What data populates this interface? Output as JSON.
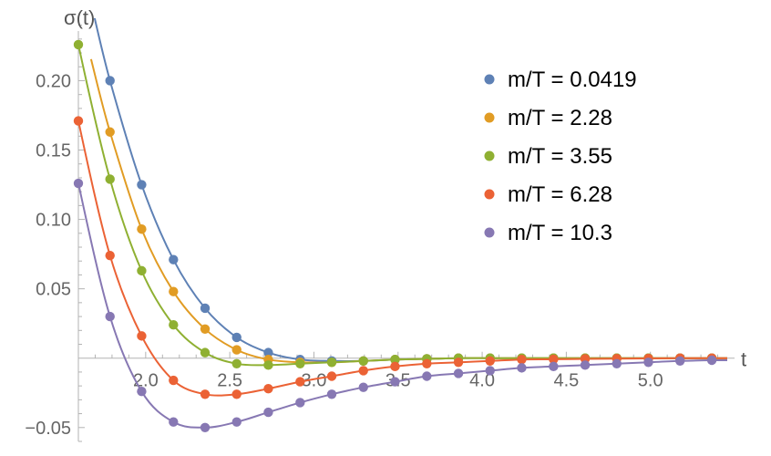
{
  "chart_data": {
    "type": "scatter",
    "xlabel": "t",
    "ylabel": "σ(t)",
    "xlim": [
      1.6,
      5.5
    ],
    "ylim": [
      -0.06,
      0.245
    ],
    "x_origin": 1.6,
    "x_ticks": [
      2.0,
      2.5,
      3.0,
      3.5,
      4.0,
      4.5,
      5.0
    ],
    "x_tick_labels": [
      "2.0",
      "2.5",
      "3.0",
      "3.5",
      "4.0",
      "4.5",
      "5.0"
    ],
    "y_ticks": [
      -0.05,
      0.05,
      0.1,
      0.15,
      0.2
    ],
    "y_tick_labels": [
      "−0.05",
      "0.05",
      "0.10",
      "0.15",
      "0.20"
    ],
    "grid": false,
    "legend_position": "top-right",
    "series": [
      {
        "name": "m/T = 0.0419",
        "color": "#5E81B5",
        "x": [
          1.788,
          1.976,
          2.165,
          2.353,
          2.541,
          2.729,
          2.918,
          3.106,
          3.294,
          3.482,
          3.671,
          3.859,
          4.047,
          4.235,
          4.424,
          4.612,
          4.8,
          4.988,
          5.176,
          5.365
        ],
        "y": [
          0.2,
          0.125,
          0.071,
          0.036,
          0.015,
          0.004,
          -0.001,
          -0.002,
          -0.002,
          -0.001,
          -0.0005,
          0.0,
          0.0,
          0.0,
          0.0,
          0.0,
          0.0,
          0.0,
          0.0,
          0.0
        ]
      },
      {
        "name": "m/T = 2.28",
        "color": "#E19C24",
        "x": [
          1.788,
          1.976,
          2.165,
          2.353,
          2.541,
          2.729,
          2.918,
          3.106,
          3.294,
          3.482,
          3.671,
          3.859,
          4.047,
          4.235,
          4.424,
          4.612,
          4.8,
          4.988,
          5.176,
          5.365
        ],
        "y": [
          0.163,
          0.093,
          0.048,
          0.021,
          0.006,
          -0.001,
          -0.003,
          -0.003,
          -0.002,
          -0.001,
          -0.0005,
          0.0,
          0.0,
          0.0,
          0.0,
          0.0,
          0.0,
          0.0,
          0.0,
          0.0
        ]
      },
      {
        "name": "m/T = 3.55",
        "color": "#8FB032",
        "x": [
          1.6,
          1.788,
          1.976,
          2.165,
          2.353,
          2.541,
          2.729,
          2.918,
          3.106,
          3.294,
          3.482,
          3.671,
          3.859,
          4.047,
          4.235,
          4.424,
          4.612,
          4.8,
          4.988,
          5.176,
          5.365
        ],
        "y": [
          0.226,
          0.129,
          0.063,
          0.024,
          0.004,
          -0.004,
          -0.005,
          -0.004,
          -0.003,
          -0.002,
          -0.001,
          -0.0005,
          0.0,
          0.0,
          0.0,
          0.0,
          0.0,
          0.0,
          0.0,
          0.0,
          0.0
        ]
      },
      {
        "name": "m/T = 6.28",
        "color": "#EB6235",
        "x": [
          1.6,
          1.788,
          1.976,
          2.165,
          2.353,
          2.541,
          2.729,
          2.918,
          3.106,
          3.294,
          3.482,
          3.671,
          3.859,
          4.047,
          4.235,
          4.424,
          4.612,
          4.8,
          4.988,
          5.176,
          5.365
        ],
        "y": [
          0.171,
          0.074,
          0.016,
          -0.016,
          -0.026,
          -0.026,
          -0.022,
          -0.017,
          -0.013,
          -0.009,
          -0.006,
          -0.004,
          -0.003,
          -0.002,
          -0.001,
          -0.0008,
          -0.0005,
          -0.0003,
          -0.0002,
          0.0,
          0.0
        ]
      },
      {
        "name": "m/T = 10.3",
        "color": "#8778B3",
        "x": [
          1.6,
          1.788,
          1.976,
          2.165,
          2.353,
          2.541,
          2.729,
          2.918,
          3.106,
          3.294,
          3.482,
          3.671,
          3.859,
          4.047,
          4.235,
          4.424,
          4.612,
          4.8,
          4.988,
          5.176,
          5.365
        ],
        "y": [
          0.126,
          0.03,
          -0.024,
          -0.046,
          -0.05,
          -0.046,
          -0.039,
          -0.032,
          -0.026,
          -0.021,
          -0.017,
          -0.013,
          -0.011,
          -0.009,
          -0.007,
          -0.006,
          -0.005,
          -0.004,
          -0.003,
          -0.002,
          -0.0015
        ]
      }
    ]
  }
}
